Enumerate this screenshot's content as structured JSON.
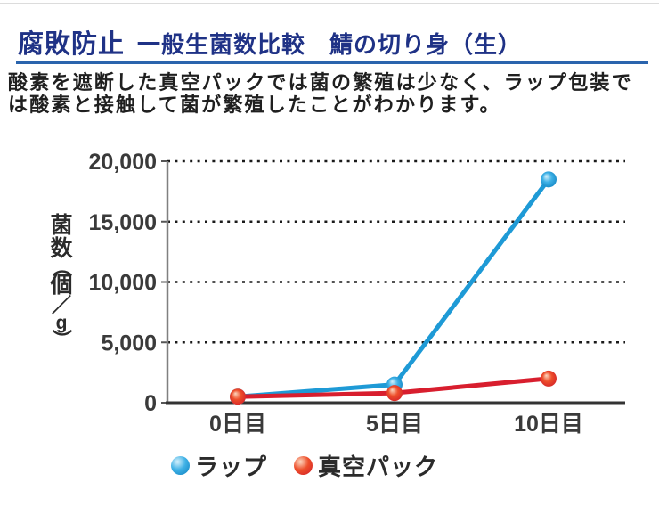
{
  "header": {
    "title": "腐敗防止",
    "subtitle": "一般生菌数比較　鯖の切り身（生）"
  },
  "description": {
    "line1": "酸素を遮断した真空パックでは菌の繁殖は少なく、ラップ包装で",
    "line2": "は酸素と接触して菌が繁殖したことがわかります。"
  },
  "colors": {
    "title_navy": "#1f3286",
    "header_rule_blue": "#2a64ad",
    "body_text": "#1f1f1f",
    "axis_dark": "#333333",
    "axis_gray": "#808080",
    "grid_dotted": "#1a1a1a",
    "wrap_series_blue": "#1e9ad6",
    "vacuum_series_red": "#d81e2e"
  },
  "chart_data": {
    "type": "line",
    "title": "",
    "xlabel": "",
    "ylabel": "菌数（個／g）",
    "categories": [
      "0日目",
      "5日目",
      "10日目"
    ],
    "series": [
      {
        "name": "ラップ",
        "values": [
          500,
          1500,
          18500
        ],
        "color": "#1e9ad6"
      },
      {
        "name": "真空パック",
        "values": [
          500,
          800,
          2000
        ],
        "color": "#d81e2e"
      }
    ],
    "yticks": [
      0,
      5000,
      10000,
      15000,
      20000
    ],
    "ytick_labels": [
      "0",
      "5,000",
      "10,000",
      "15,000",
      "20,000"
    ],
    "ylim": [
      0,
      20000
    ],
    "grid": "horizontal-dotted",
    "legend_position": "bottom-left"
  }
}
